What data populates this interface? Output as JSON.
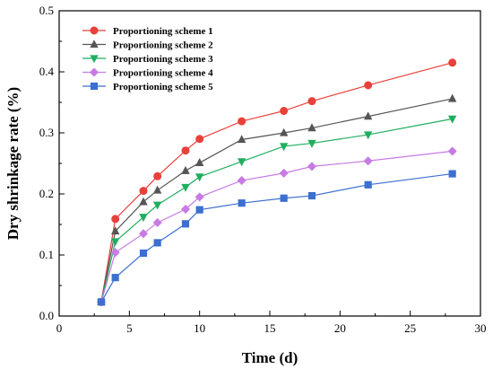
{
  "chart_data": {
    "type": "line",
    "title": "",
    "xlabel": "Time (d)",
    "ylabel": "Dry shrinkage rate (%)",
    "xlim": [
      0,
      30
    ],
    "ylim": [
      0,
      0.5
    ],
    "xticks": [
      0,
      5,
      10,
      15,
      20,
      25,
      30
    ],
    "yticks": [
      0.0,
      0.1,
      0.2,
      0.3,
      0.4,
      0.5
    ],
    "ytick_labels": [
      "0.0",
      "0.1",
      "0.2",
      "0.3",
      "0.4",
      "0.5"
    ],
    "grid": false,
    "legend_position": "top-left",
    "x": [
      3,
      4,
      6,
      7,
      9,
      10,
      13,
      16,
      18,
      22,
      28
    ],
    "series": [
      {
        "name": "Proportioning scheme 1",
        "color": "#e8413a",
        "marker": "circle",
        "values": [
          0.023,
          0.159,
          0.205,
          0.229,
          0.271,
          0.29,
          0.319,
          0.336,
          0.352,
          0.378,
          0.415
        ]
      },
      {
        "name": "Proportioning scheme 2",
        "color": "#555555",
        "marker": "triangle-up",
        "values": [
          0.023,
          0.139,
          0.187,
          0.206,
          0.238,
          0.251,
          0.289,
          0.3,
          0.308,
          0.327,
          0.356
        ]
      },
      {
        "name": "Proportioning scheme 3",
        "color": "#1fae5f",
        "marker": "triangle-down",
        "values": [
          0.023,
          0.122,
          0.162,
          0.182,
          0.211,
          0.228,
          0.253,
          0.278,
          0.283,
          0.297,
          0.323
        ]
      },
      {
        "name": "Proportioning scheme 4",
        "color": "#c77be3",
        "marker": "diamond",
        "values": [
          0.023,
          0.104,
          0.135,
          0.153,
          0.175,
          0.195,
          0.222,
          0.234,
          0.245,
          0.254,
          0.27
        ]
      },
      {
        "name": "Proportioning scheme 5",
        "color": "#3b6fd0",
        "marker": "square",
        "values": [
          0.023,
          0.063,
          0.103,
          0.12,
          0.151,
          0.174,
          0.185,
          0.193,
          0.197,
          0.215,
          0.233
        ]
      }
    ]
  }
}
